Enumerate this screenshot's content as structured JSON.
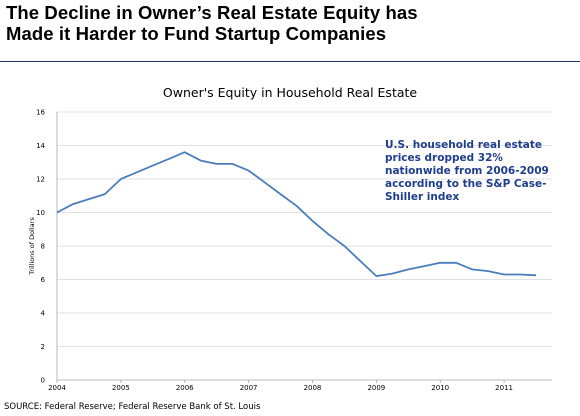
{
  "headline": {
    "line1": "The Decline in Owner’s Real Estate Equity has",
    "line2": "Made it Harder to Fund Startup Companies"
  },
  "source": "SOURCE: Federal Reserve; Federal Reserve Bank of St. Louis",
  "annotation": "U.S. household real estate prices dropped 32% nationwide from 2006-2009\n according to the S&P Case-Shiller index",
  "colors": {
    "line": "#4a7ebb",
    "rule": "#1f2f6e",
    "annotation": "#1f3d8c",
    "grid": "#d9d9d9"
  },
  "chart_data": {
    "type": "line",
    "title": "Owner's Equity in Household Real Estate",
    "xlabel": "",
    "ylabel": "Trillions of Dollars",
    "xlim": [
      2004,
      2011.75
    ],
    "ylim": [
      0,
      16
    ],
    "yticks": [
      0,
      2,
      4,
      6,
      8,
      10,
      12,
      14,
      16
    ],
    "xticks": [
      "2004",
      "2005",
      "2006",
      "2007",
      "2008",
      "2009",
      "2010",
      "2011"
    ],
    "grid": true,
    "legend": "none",
    "series": [
      {
        "x": [
          2004.0,
          2004.25,
          2004.5,
          2004.75,
          2005.0,
          2005.25,
          2005.5,
          2005.75,
          2006.0,
          2006.25,
          2006.5,
          2006.75,
          2007.0,
          2007.25,
          2007.5,
          2007.75,
          2008.0,
          2008.25,
          2008.5,
          2008.75,
          2009.0,
          2009.25,
          2009.5,
          2009.75,
          2010.0,
          2010.25,
          2010.5,
          2010.75,
          2011.0,
          2011.25,
          2011.5
        ],
        "y": [
          10.0,
          10.5,
          10.8,
          11.1,
          12.0,
          12.4,
          12.8,
          13.2,
          13.6,
          13.1,
          12.9,
          12.9,
          12.5,
          11.8,
          11.1,
          10.4,
          9.5,
          8.7,
          8.0,
          7.1,
          6.2,
          6.35,
          6.6,
          6.8,
          7.0,
          7.0,
          6.6,
          6.5,
          6.3,
          6.3,
          6.25
        ]
      }
    ]
  }
}
